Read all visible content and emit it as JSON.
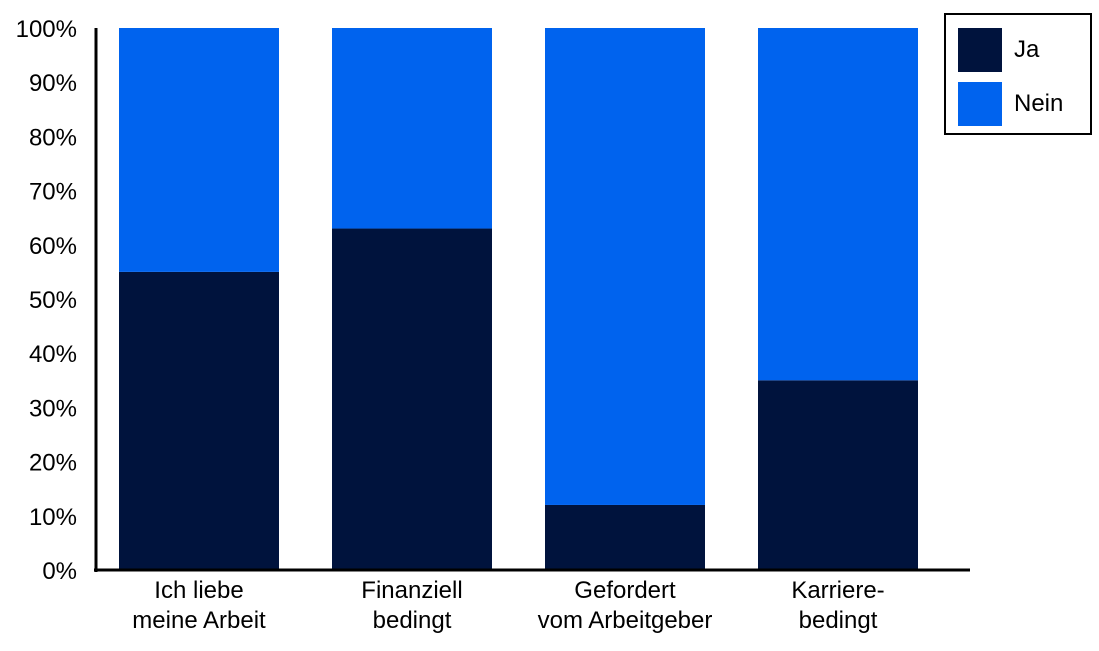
{
  "chart_data": {
    "type": "bar",
    "stacked": true,
    "categories": [
      [
        "Ich liebe",
        "meine Arbeit"
      ],
      [
        "Finanziell",
        "bedingt"
      ],
      [
        "Gefordert",
        "vom Arbeitgeber"
      ],
      [
        "Karriere-",
        "bedingt"
      ]
    ],
    "series": [
      {
        "name": "Ja",
        "color": "#00133d",
        "values": [
          55,
          63,
          12,
          35
        ]
      },
      {
        "name": "Nein",
        "color": "#0063ee",
        "values": [
          45,
          37,
          88,
          65
        ]
      }
    ],
    "ylim": [
      0,
      100
    ],
    "yticks": [
      "0%",
      "10%",
      "20%",
      "30%",
      "40%",
      "50%",
      "60%",
      "70%",
      "80%",
      "90%",
      "100%"
    ],
    "title": "",
    "xlabel": "",
    "ylabel": "",
    "grid": false,
    "legend_position": "top-right"
  }
}
